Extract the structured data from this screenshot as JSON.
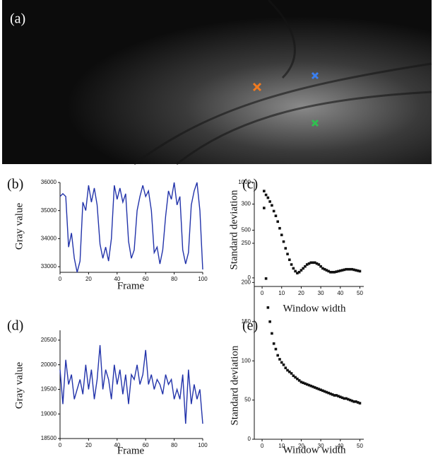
{
  "image": {
    "label": "(a)"
  },
  "chart_data": [
    {
      "type": "line",
      "panel_label": "(b)",
      "xlabel": "Frame",
      "ylabel": "Gray value",
      "color": "#2233aa",
      "x": [
        0,
        2,
        4,
        6,
        8,
        10,
        12,
        14,
        16,
        18,
        20,
        22,
        24,
        26,
        28,
        30,
        32,
        34,
        36,
        38,
        40,
        42,
        44,
        46,
        48,
        50,
        52,
        54,
        56,
        58,
        60,
        62,
        64,
        66,
        68,
        70,
        72,
        74,
        76,
        78,
        80,
        82,
        84,
        86,
        88,
        90,
        92,
        94,
        96,
        98,
        100
      ],
      "values": [
        35500,
        35600,
        35500,
        33700,
        34200,
        33300,
        32800,
        33200,
        35300,
        35000,
        35900,
        35300,
        35800,
        35200,
        33800,
        33300,
        33700,
        33200,
        34000,
        35900,
        35400,
        35800,
        35300,
        35600,
        33900,
        33300,
        33600,
        35000,
        35500,
        35900,
        35500,
        35700,
        35000,
        33500,
        33700,
        33100,
        33600,
        34800,
        35700,
        35400,
        36000,
        35200,
        35500,
        33600,
        33100,
        33500,
        35200,
        35700,
        36000,
        35000,
        32900
      ],
      "xlim": [
        0,
        100
      ],
      "xticks": [
        0,
        20,
        40,
        60,
        80,
        100
      ],
      "ylim": [
        32800,
        36000
      ],
      "yticks": [
        33000,
        34000,
        35000,
        36000
      ]
    },
    {
      "type": "scatter",
      "panel_label": "(c)",
      "xlabel": "Window width",
      "ylabel": "Standard deviation",
      "color": "#111111",
      "x": [
        1,
        2,
        3,
        4,
        5,
        6,
        7,
        8,
        9,
        10,
        11,
        12,
        13,
        14,
        15,
        16,
        17,
        18,
        19,
        20,
        21,
        22,
        23,
        24,
        25,
        26,
        27,
        28,
        29,
        30,
        31,
        32,
        33,
        34,
        35,
        36,
        37,
        38,
        39,
        40,
        41,
        42,
        43,
        44,
        45,
        46,
        47,
        48,
        49,
        50
      ],
      "values": [
        910,
        870,
        840,
        800,
        760,
        700,
        650,
        590,
        520,
        450,
        380,
        310,
        250,
        190,
        140,
        100,
        70,
        50,
        60,
        80,
        100,
        120,
        140,
        150,
        160,
        160,
        160,
        150,
        140,
        120,
        100,
        90,
        80,
        70,
        60,
        60,
        60,
        65,
        70,
        75,
        80,
        85,
        90,
        90,
        90,
        90,
        85,
        80,
        75,
        70
      ],
      "xlim": [
        -4,
        52
      ],
      "xticks": [
        0,
        10,
        20,
        30,
        40,
        50
      ],
      "ylim": [
        -90,
        1000
      ],
      "yticks": [
        0,
        500,
        1000
      ]
    },
    {
      "type": "line",
      "panel_label": "(d)",
      "xlabel": "Frame",
      "ylabel": "Gray value",
      "color": "#2233aa",
      "x": [
        0,
        2,
        4,
        6,
        8,
        10,
        12,
        14,
        16,
        18,
        20,
        22,
        24,
        26,
        28,
        30,
        32,
        34,
        36,
        38,
        40,
        42,
        44,
        46,
        48,
        50,
        52,
        54,
        56,
        58,
        60,
        62,
        64,
        66,
        68,
        70,
        72,
        74,
        76,
        78,
        80,
        82,
        84,
        86,
        88,
        90,
        92,
        94,
        96,
        98,
        100
      ],
      "values": [
        19900,
        19200,
        20100,
        19600,
        19800,
        19300,
        19500,
        19700,
        19400,
        20000,
        19500,
        19900,
        19300,
        19700,
        20400,
        19500,
        19900,
        19700,
        19300,
        20000,
        19600,
        19900,
        19400,
        19800,
        19200,
        19800,
        19700,
        20000,
        19600,
        19800,
        20300,
        19600,
        19800,
        19500,
        19700,
        19600,
        19400,
        19800,
        19600,
        19700,
        19300,
        19500,
        19300,
        19800,
        18800,
        19900,
        19200,
        19600,
        19300,
        19500,
        18800
      ],
      "xlim": [
        0,
        100
      ],
      "xticks": [
        0,
        20,
        40,
        60,
        80,
        100
      ],
      "ylim": [
        18500,
        20700
      ],
      "yticks": [
        18500,
        19000,
        19500,
        20000,
        20500
      ]
    },
    {
      "type": "scatter",
      "panel_label": "(e)",
      "xlabel": "Window width",
      "ylabel": "Standard deviation",
      "color": "#111111",
      "x": [
        1,
        2,
        3,
        4,
        5,
        6,
        7,
        8,
        9,
        10,
        11,
        12,
        13,
        14,
        15,
        16,
        17,
        18,
        19,
        20,
        21,
        22,
        23,
        24,
        25,
        26,
        27,
        28,
        29,
        30,
        31,
        32,
        33,
        34,
        35,
        36,
        37,
        38,
        39,
        40,
        41,
        42,
        43,
        44,
        45,
        46,
        47,
        48,
        49,
        50
      ],
      "values": [
        295,
        205,
        168,
        150,
        135,
        122,
        115,
        107,
        102,
        98,
        95,
        91,
        88,
        86,
        84,
        81,
        79,
        77,
        75,
        73,
        72,
        71,
        70,
        69,
        68,
        67,
        66,
        65,
        64,
        63,
        62,
        61,
        60,
        59,
        58,
        57,
        56,
        56,
        55,
        54,
        53,
        52,
        52,
        51,
        50,
        49,
        48,
        48,
        47,
        46
      ],
      "xlim": [
        -4,
        52
      ],
      "xticks": [
        0,
        10,
        20,
        30,
        40,
        50
      ],
      "ylim": [
        0,
        305
      ],
      "yticks": [
        0,
        50,
        100,
        150,
        200,
        250,
        300
      ]
    }
  ]
}
